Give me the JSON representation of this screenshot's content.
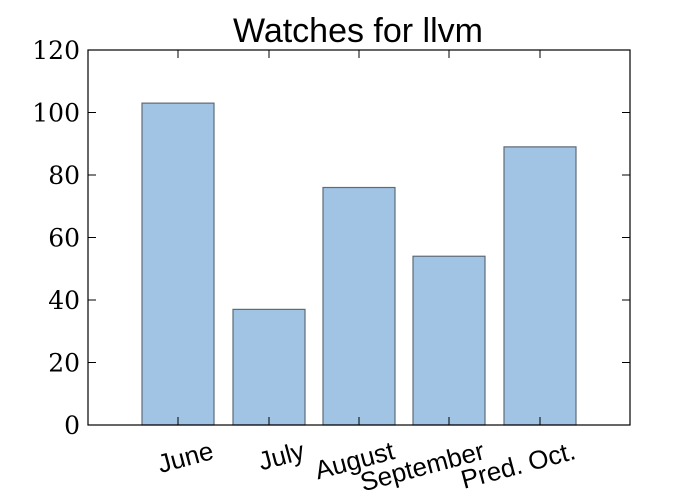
{
  "chart_data": {
    "type": "bar",
    "title": "Watches for llvm",
    "categories": [
      "June",
      "July",
      "August",
      "September",
      "Pred. Oct."
    ],
    "values": [
      103,
      37,
      76,
      54,
      89
    ],
    "xlabel": "",
    "ylabel": "",
    "ylim": [
      0,
      120
    ],
    "yticks": [
      "0",
      "20",
      "40",
      "60",
      "80",
      "100",
      "120"
    ],
    "grid": false,
    "legend": "none",
    "colors": {
      "bar_fill": "#a1c3e4",
      "bar_edge": "#5e6b78",
      "axes": "#000000"
    }
  }
}
